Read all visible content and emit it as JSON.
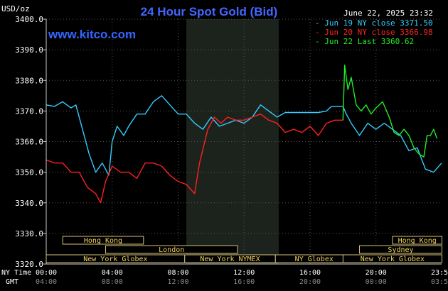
{
  "chart_data": {
    "type": "line",
    "title": "24 Hour Spot Gold (Bid)",
    "site": "www.kitco.com",
    "ylabel": "USD/oz",
    "timestamp": "June 22, 2025 23:32",
    "ylim": [
      3320,
      3400
    ],
    "y_ticks": [
      "3400.0",
      "3390.0",
      "3380.0",
      "3370.0",
      "3360.0",
      "3350.0",
      "3340.0",
      "3330.0",
      "3320.0"
    ],
    "x_ny_label": "NY Time",
    "x_gmt_label": "GMT",
    "x_ticks_ny": [
      "00:00",
      "04:00",
      "08:00",
      "12:00",
      "16:00",
      "20:00",
      "23:59"
    ],
    "x_ticks_gmt": [
      "04:00",
      "08:00",
      "12:00",
      "16:00",
      "20:00",
      "00:00",
      "03:59"
    ],
    "xlim_hours": [
      0,
      23.98
    ],
    "shaded_range_hours": [
      8.5,
      14.1
    ],
    "legend": [
      {
        "text": "Jun 19 NY close 3371.50",
        "color": "#33ccff"
      },
      {
        "text": "Jun 20 NY close 3366.98",
        "color": "#ff2020"
      },
      {
        "text": "Jun 22 Last 3360.62",
        "color": "#22ee22"
      }
    ],
    "sessions_left": [
      {
        "label": "Hong Kong",
        "start": 1.0,
        "end": 5.9,
        "row": 0
      },
      {
        "label": "London",
        "start": 3.6,
        "end": 11.6,
        "row": 1
      },
      {
        "label": "New York Globex",
        "start": 0.0,
        "end": 8.4,
        "row": 2
      },
      {
        "label": "New York NYMEX",
        "start": 8.4,
        "end": 13.9,
        "row": 2
      },
      {
        "label": "NY Globex",
        "start": 13.9,
        "end": 18.6,
        "row": 2
      }
    ],
    "sessions_right": [
      {
        "label": "Hong Kong",
        "start": 21.0,
        "end": 24.0,
        "row": 0
      },
      {
        "label": "Sydney",
        "start": 19.0,
        "end": 24.0,
        "row": 1
      },
      {
        "label": "New York Globex",
        "start": 18.0,
        "end": 24.0,
        "row": 2
      }
    ],
    "series": [
      {
        "name": "Jun 19",
        "color": "#33ccff",
        "x": [
          0,
          0.5,
          1.0,
          1.5,
          1.8,
          2.2,
          2.6,
          3.0,
          3.4,
          3.8,
          4.0,
          4.3,
          4.7,
          5.0,
          5.5,
          6.0,
          6.5,
          7.0,
          7.5,
          8.0,
          8.5,
          9.0,
          9.5,
          10.0,
          10.5,
          11.0,
          11.5,
          12.0,
          12.5,
          13.0,
          13.5,
          14.0,
          14.5,
          15.0,
          15.5,
          16.0,
          16.5,
          17.0,
          17.3,
          17.6,
          18.0,
          18.2,
          18.5,
          19.0,
          19.5,
          20.0,
          20.5,
          21.0,
          21.5,
          22.0,
          22.5,
          23.0,
          23.5,
          23.98
        ],
        "values": [
          3372,
          3371.5,
          3373,
          3371,
          3372,
          3364,
          3356,
          3350,
          3353,
          3349,
          3360,
          3365,
          3362,
          3365,
          3369,
          3369,
          3373,
          3375,
          3372,
          3369,
          3369,
          3366,
          3364,
          3368,
          3365,
          3366,
          3367,
          3366,
          3368,
          3372,
          3370,
          3368,
          3369.5,
          3369.5,
          3369.5,
          3369.5,
          3369.5,
          3370,
          3371.5,
          3371.5,
          3371.5,
          3369,
          3366,
          3362,
          3366,
          3364,
          3366,
          3364,
          3362,
          3357,
          3358,
          3351,
          3350,
          3353
        ]
      },
      {
        "name": "Jun 20",
        "color": "#ff2020",
        "x": [
          0,
          0.5,
          1.0,
          1.5,
          2.0,
          2.5,
          3.0,
          3.3,
          3.6,
          4.0,
          4.5,
          5.0,
          5.5,
          6.0,
          6.5,
          7.0,
          7.5,
          8.0,
          8.5,
          9.0,
          9.3,
          9.8,
          10.2,
          10.6,
          11.0,
          11.5,
          12.0,
          12.5,
          13.0,
          13.5,
          14.0,
          14.5,
          15.0,
          15.5,
          16.0,
          16.5,
          17.0,
          17.5,
          18.0
        ],
        "values": [
          3354,
          3353,
          3353,
          3350,
          3350,
          3345,
          3343,
          3340,
          3347,
          3352,
          3350,
          3350,
          3348,
          3353,
          3353,
          3352,
          3349,
          3347,
          3346,
          3343,
          3353,
          3364,
          3368,
          3366,
          3368,
          3367,
          3367,
          3368,
          3369,
          3367,
          3366,
          3363,
          3364,
          3363,
          3365,
          3362,
          3366,
          3367,
          3367
        ]
      },
      {
        "name": "Jun 22",
        "color": "#22ee22",
        "x": [
          18.0,
          18.1,
          18.3,
          18.5,
          18.8,
          19.1,
          19.4,
          19.7,
          20.0,
          20.4,
          20.8,
          21.1,
          21.4,
          21.7,
          22.0,
          22.3,
          22.6,
          22.9,
          23.1,
          23.3,
          23.5,
          23.7
        ],
        "values": [
          3367,
          3385,
          3377,
          3381,
          3372,
          3370,
          3372,
          3369,
          3371,
          3373,
          3368,
          3363,
          3362,
          3364,
          3362,
          3358,
          3356,
          3355,
          3362,
          3362,
          3364,
          3361
        ]
      }
    ]
  }
}
